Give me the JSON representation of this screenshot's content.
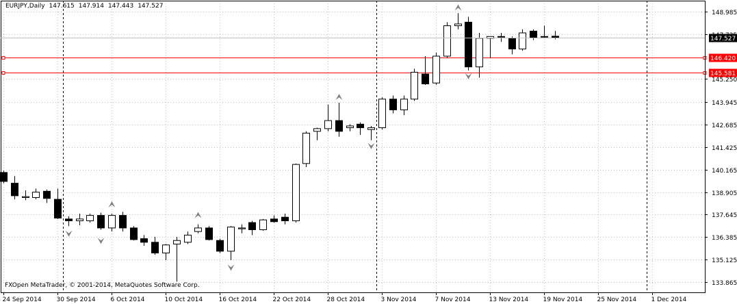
{
  "header": {
    "symbol": "EURJPY,Daily",
    "open": "147.615",
    "high": "147.914",
    "low": "147.443",
    "close": "147.527"
  },
  "copyright": "FXOpen MetaTrader, © 2001-2014, MetaQuotes Software Corp.",
  "colors": {
    "background": "#ffffff",
    "grid": "#c0c0c0",
    "hline": "#ff0000",
    "label_bg": "#ff0000",
    "price_label_bg": "#000000",
    "fractal": "#808080"
  },
  "chart_data": {
    "type": "candlestick",
    "ylim": [
      133.3,
      149.6
    ],
    "yticks": [
      "148.985",
      "147.725",
      "145.250",
      "143.945",
      "142.685",
      "141.425",
      "140.165",
      "138.905",
      "137.645",
      "136.385",
      "135.125",
      "133.865"
    ],
    "xticks": [
      "24 Sep 2014",
      "30 Sep 2014",
      "6 Oct 2014",
      "10 Oct 2014",
      "16 Oct 2014",
      "22 Oct 2014",
      "28 Oct 2014",
      "3 Nov 2014",
      "7 Nov 2014",
      "13 Nov 2014",
      "19 Nov 2014",
      "25 Nov 2014",
      "1 Dec 2014"
    ],
    "xtick_index": [
      0,
      5,
      10,
      15,
      20,
      25,
      30,
      35,
      40,
      45,
      50,
      55,
      60
    ],
    "period_separators_index": [
      5,
      34,
      59
    ],
    "grid": true,
    "hlines": [
      {
        "value": 146.42,
        "label": "146.420"
      },
      {
        "value": 145.581,
        "label": "145.581"
      }
    ],
    "last_price": {
      "value": 147.527,
      "label": "147.527"
    },
    "candles": [
      {
        "o": 140.0,
        "h": 140.1,
        "l": 139.4,
        "c": 139.5
      },
      {
        "o": 139.4,
        "h": 139.8,
        "l": 138.5,
        "c": 138.7
      },
      {
        "o": 138.6,
        "h": 139.0,
        "l": 138.45,
        "c": 138.65
      },
      {
        "o": 138.6,
        "h": 139.1,
        "l": 138.5,
        "c": 138.9
      },
      {
        "o": 138.95,
        "h": 139.05,
        "l": 138.3,
        "c": 138.55
      },
      {
        "o": 138.5,
        "h": 139.1,
        "l": 137.4,
        "c": 137.45
      },
      {
        "o": 137.4,
        "h": 137.55,
        "l": 137.0,
        "c": 137.3
      },
      {
        "o": 137.3,
        "h": 137.7,
        "l": 137.05,
        "c": 137.4
      },
      {
        "o": 137.3,
        "h": 137.7,
        "l": 137.2,
        "c": 137.6
      },
      {
        "o": 137.6,
        "h": 137.75,
        "l": 136.8,
        "c": 136.9
      },
      {
        "o": 136.9,
        "h": 137.7,
        "l": 136.7,
        "c": 137.6
      },
      {
        "o": 137.6,
        "h": 137.8,
        "l": 136.7,
        "c": 136.9
      },
      {
        "o": 136.9,
        "h": 137.0,
        "l": 136.2,
        "c": 136.25
      },
      {
        "o": 136.3,
        "h": 136.5,
        "l": 135.9,
        "c": 136.1
      },
      {
        "o": 136.1,
        "h": 136.4,
        "l": 135.4,
        "c": 135.5
      },
      {
        "o": 135.5,
        "h": 136.0,
        "l": 135.1,
        "c": 135.95
      },
      {
        "o": 136.0,
        "h": 136.4,
        "l": 133.9,
        "c": 136.2
      },
      {
        "o": 136.1,
        "h": 136.7,
        "l": 136.0,
        "c": 136.5
      },
      {
        "o": 136.7,
        "h": 137.1,
        "l": 136.6,
        "c": 136.9
      },
      {
        "o": 136.9,
        "h": 137.0,
        "l": 136.2,
        "c": 136.25
      },
      {
        "o": 136.2,
        "h": 136.3,
        "l": 135.5,
        "c": 135.6
      },
      {
        "o": 135.6,
        "h": 137.0,
        "l": 135.1,
        "c": 136.95
      },
      {
        "o": 136.85,
        "h": 137.1,
        "l": 136.6,
        "c": 136.9
      },
      {
        "o": 137.2,
        "h": 137.3,
        "l": 136.5,
        "c": 136.8
      },
      {
        "o": 136.8,
        "h": 137.4,
        "l": 136.75,
        "c": 137.35
      },
      {
        "o": 137.4,
        "h": 137.6,
        "l": 137.2,
        "c": 137.25
      },
      {
        "o": 137.5,
        "h": 137.7,
        "l": 137.1,
        "c": 137.3
      },
      {
        "o": 137.3,
        "h": 140.5,
        "l": 137.2,
        "c": 140.45
      },
      {
        "o": 140.5,
        "h": 142.3,
        "l": 140.3,
        "c": 142.2
      },
      {
        "o": 142.3,
        "h": 142.5,
        "l": 141.8,
        "c": 142.45
      },
      {
        "o": 142.45,
        "h": 143.8,
        "l": 142.3,
        "c": 142.9
      },
      {
        "o": 142.9,
        "h": 143.9,
        "l": 142.0,
        "c": 142.3
      },
      {
        "o": 142.5,
        "h": 142.7,
        "l": 142.3,
        "c": 142.6
      },
      {
        "o": 142.7,
        "h": 142.8,
        "l": 142.1,
        "c": 142.5
      },
      {
        "o": 142.4,
        "h": 142.6,
        "l": 141.8,
        "c": 142.5
      },
      {
        "o": 142.5,
        "h": 144.2,
        "l": 142.4,
        "c": 144.1
      },
      {
        "o": 144.1,
        "h": 144.3,
        "l": 143.3,
        "c": 143.5
      },
      {
        "o": 143.5,
        "h": 144.3,
        "l": 143.2,
        "c": 144.1
      },
      {
        "o": 144.1,
        "h": 145.8,
        "l": 144.0,
        "c": 145.6
      },
      {
        "o": 145.5,
        "h": 146.5,
        "l": 144.9,
        "c": 144.95
      },
      {
        "o": 145.0,
        "h": 146.7,
        "l": 144.9,
        "c": 146.5
      },
      {
        "o": 146.5,
        "h": 148.4,
        "l": 146.4,
        "c": 148.2
      },
      {
        "o": 148.2,
        "h": 148.9,
        "l": 148.0,
        "c": 148.3
      },
      {
        "o": 148.4,
        "h": 148.7,
        "l": 145.7,
        "c": 145.9
      },
      {
        "o": 145.9,
        "h": 147.8,
        "l": 145.3,
        "c": 147.5
      },
      {
        "o": 147.5,
        "h": 147.6,
        "l": 146.4,
        "c": 147.6
      },
      {
        "o": 147.6,
        "h": 147.8,
        "l": 147.3,
        "c": 147.6
      },
      {
        "o": 147.5,
        "h": 147.6,
        "l": 146.6,
        "c": 146.9
      },
      {
        "o": 146.9,
        "h": 148.0,
        "l": 146.8,
        "c": 147.8
      },
      {
        "o": 147.9,
        "h": 148.0,
        "l": 147.4,
        "c": 147.55
      },
      {
        "o": 147.6,
        "h": 148.2,
        "l": 147.5,
        "c": 147.58
      },
      {
        "o": 147.615,
        "h": 147.914,
        "l": 147.443,
        "c": 147.527
      }
    ],
    "fractals": [
      {
        "i": 6,
        "dir": "down",
        "price": 136.6
      },
      {
        "i": 10,
        "dir": "up",
        "price": 138.2
      },
      {
        "i": 9,
        "dir": "down",
        "price": 136.2
      },
      {
        "i": 18,
        "dir": "up",
        "price": 137.6
      },
      {
        "i": 21,
        "dir": "down",
        "price": 134.7
      },
      {
        "i": 31,
        "dir": "up",
        "price": 144.2
      },
      {
        "i": 34,
        "dir": "down",
        "price": 141.5
      },
      {
        "i": 42,
        "dir": "up",
        "price": 149.2
      },
      {
        "i": 43,
        "dir": "down",
        "price": 145.4
      }
    ]
  }
}
